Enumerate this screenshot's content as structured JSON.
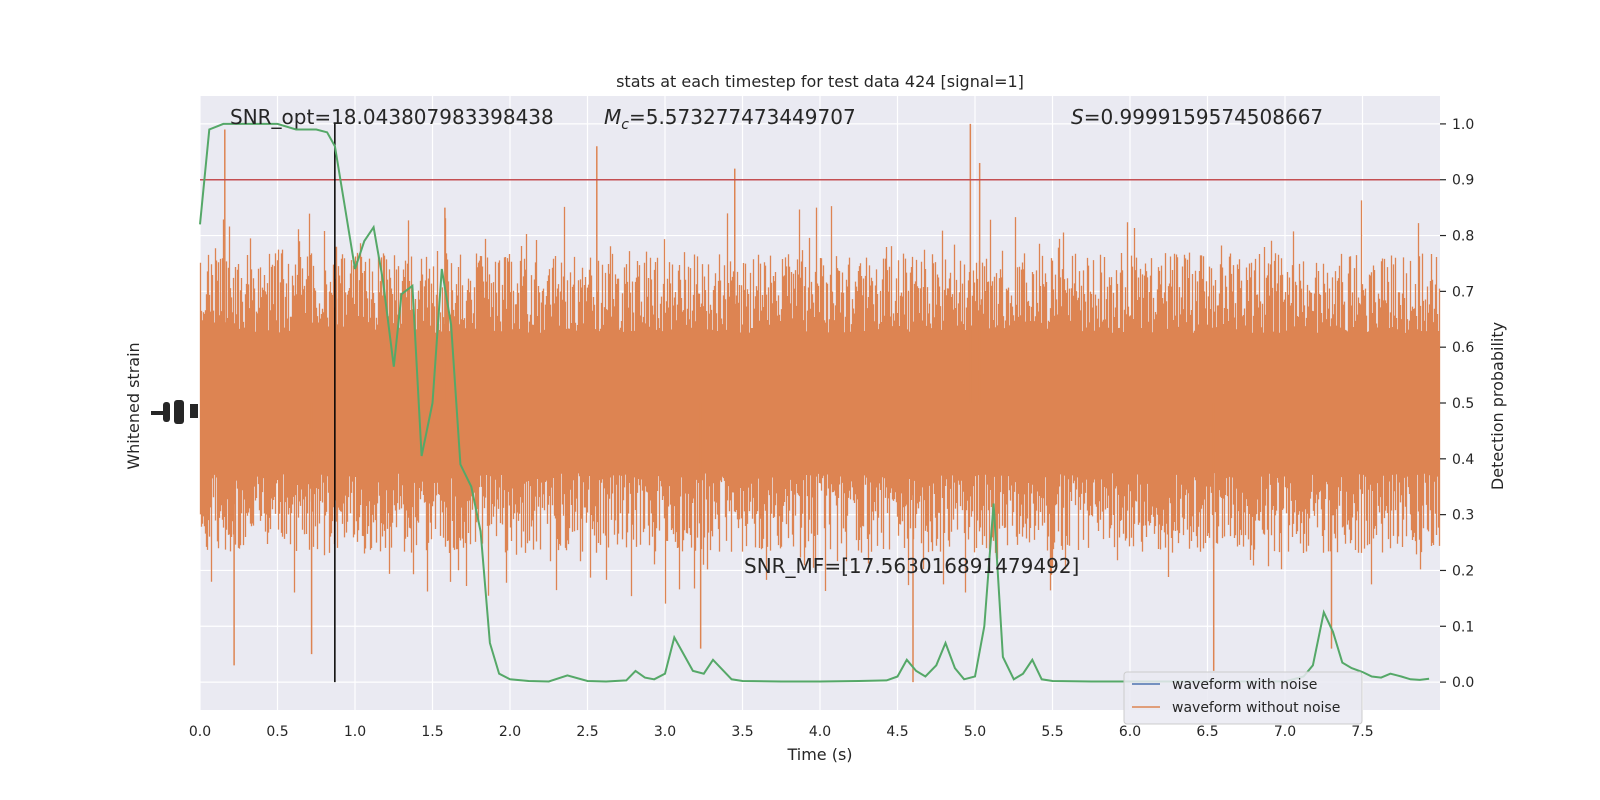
{
  "chart_data": {
    "type": "line",
    "title": "stats at each timestep for test data 424 [signal=1]",
    "xlabel": "Time (s)",
    "ylabel_left": "Whitened strain",
    "ylabel_right": "Detection probability",
    "xlim": [
      0.0,
      8.0
    ],
    "ylim_right": [
      -0.05,
      1.05
    ],
    "x_ticks": [
      0.0,
      0.5,
      1.0,
      1.5,
      2.0,
      2.5,
      3.0,
      3.5,
      4.0,
      4.5,
      5.0,
      5.5,
      6.0,
      6.5,
      7.0,
      7.5
    ],
    "x_tick_labels": [
      "0.0",
      "0.5",
      "1.0",
      "1.5",
      "2.0",
      "2.5",
      "3.0",
      "3.5",
      "4.0",
      "4.5",
      "5.0",
      "5.5",
      "6.0",
      "6.5",
      "7.0",
      "7.5"
    ],
    "y_ticks_right": [
      0.0,
      0.1,
      0.2,
      0.3,
      0.4,
      0.5,
      0.6,
      0.7,
      0.8,
      0.9,
      1.0
    ],
    "y_tick_labels_right": [
      "0.0",
      "0.1",
      "0.2",
      "0.3",
      "0.4",
      "0.5",
      "0.6",
      "0.7",
      "0.8",
      "0.9",
      "1.0"
    ],
    "grid": true,
    "annotations": {
      "snr_opt": "SNR_opt=18.043807983398438",
      "mc_symbol": "M",
      "mc_sub": "c",
      "mc_value": "=5.573277473449707",
      "s_symbol": "S",
      "s_value": "=0.9999159574508667",
      "snr_mf": "SNR_MF=[17.563016891479492]"
    },
    "threshold": 0.9,
    "marker_time": 0.87,
    "legend_position": "lower right",
    "series": [
      {
        "name": "waveform with noise",
        "color": "#4c72b0"
      },
      {
        "name": "waveform without noise",
        "color": "#dd8452"
      },
      {
        "color": "#55a868",
        "x": [
          0.0,
          0.06,
          0.15,
          0.25,
          0.37,
          0.5,
          0.62,
          0.75,
          0.82,
          0.87,
          0.93,
          1.0,
          1.06,
          1.12,
          1.18,
          1.25,
          1.3,
          1.37,
          1.43,
          1.5,
          1.56,
          1.62,
          1.68,
          1.75,
          1.81,
          1.87,
          1.93,
          2.0,
          2.12,
          2.25,
          2.37,
          2.5,
          2.62,
          2.75,
          2.81,
          2.87,
          2.93,
          3.0,
          3.06,
          3.18,
          3.25,
          3.31,
          3.43,
          3.5,
          3.75,
          4.0,
          4.25,
          4.43,
          4.5,
          4.56,
          4.62,
          4.68,
          4.75,
          4.81,
          4.87,
          4.93,
          5.0,
          5.06,
          5.12,
          5.18,
          5.25,
          5.31,
          5.37,
          5.43,
          5.5,
          5.75,
          6.0,
          6.5,
          7.0,
          7.12,
          7.18,
          7.25,
          7.31,
          7.37,
          7.43,
          7.5,
          7.56,
          7.62,
          7.68,
          7.75,
          7.81,
          7.87,
          7.93
        ],
        "values": [
          0.82,
          0.99,
          1.0,
          1.0,
          1.0,
          1.0,
          0.99,
          0.99,
          0.985,
          0.96,
          0.86,
          0.74,
          0.79,
          0.815,
          0.72,
          0.565,
          0.695,
          0.71,
          0.405,
          0.5,
          0.74,
          0.64,
          0.39,
          0.35,
          0.27,
          0.07,
          0.015,
          0.005,
          0.002,
          0.001,
          0.012,
          0.002,
          0.001,
          0.003,
          0.02,
          0.008,
          0.005,
          0.015,
          0.08,
          0.02,
          0.015,
          0.04,
          0.005,
          0.002,
          0.001,
          0.001,
          0.002,
          0.003,
          0.01,
          0.04,
          0.02,
          0.01,
          0.03,
          0.07,
          0.025,
          0.005,
          0.01,
          0.1,
          0.32,
          0.045,
          0.005,
          0.015,
          0.04,
          0.005,
          0.002,
          0.001,
          0.001,
          0.001,
          0.001,
          0.01,
          0.03,
          0.125,
          0.09,
          0.035,
          0.025,
          0.018,
          0.01,
          0.008,
          0.015,
          0.01,
          0.005,
          0.004,
          0.006
        ]
      }
    ]
  }
}
